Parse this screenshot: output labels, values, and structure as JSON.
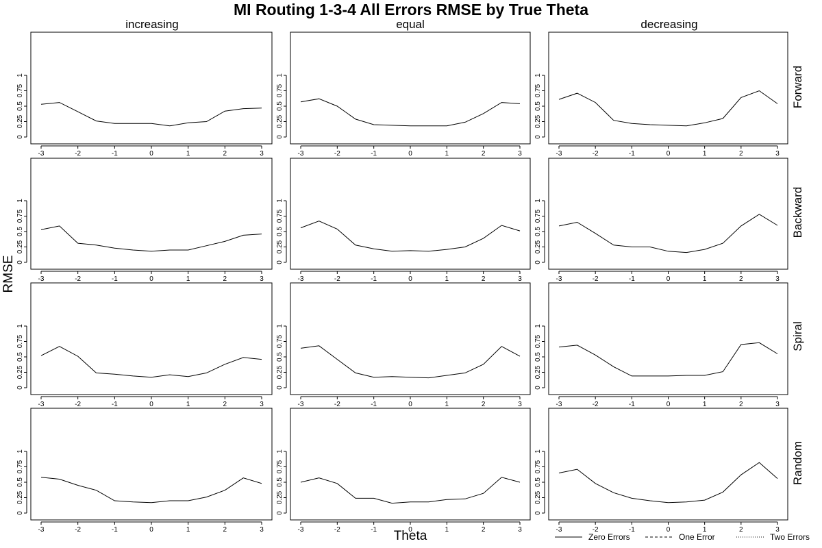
{
  "chart_data": {
    "type": "line",
    "title": "MI Routing 1-3-4 All Errors RMSE by True Theta",
    "xlabel": "Theta",
    "ylabel": "RMSE",
    "columns": [
      "increasing",
      "equal",
      "decreasing"
    ],
    "rows": [
      "Forward",
      "Backward",
      "Spiral",
      "Random"
    ],
    "x": [
      -3,
      -2.5,
      -2,
      -1.5,
      -1,
      -0.5,
      0,
      0.5,
      1,
      1.5,
      2,
      2.5,
      3
    ],
    "x_ticks": [
      "-3",
      "-2",
      "-1",
      "0",
      "1",
      "2",
      "3"
    ],
    "y_ticks": [
      "0",
      "0.25",
      "0.5",
      "0.75",
      "1"
    ],
    "ylim": [
      0,
      1.5
    ],
    "xlim": [
      -3,
      3
    ],
    "legend": {
      "placement": "bottom-right",
      "entries": [
        {
          "name": "Zero Errors",
          "style": "solid"
        },
        {
          "name": "One Error",
          "style": "dashed"
        },
        {
          "name": "Two Errors",
          "style": "dotted"
        }
      ]
    },
    "panels": [
      {
        "row": "Forward",
        "column": "increasing",
        "series": [
          {
            "name": "Zero Errors",
            "values": [
              0.53,
              0.56,
              0.41,
              0.26,
              0.22,
              0.22,
              0.22,
              0.18,
              0.23,
              0.25,
              0.42,
              0.46,
              0.47
            ]
          }
        ]
      },
      {
        "row": "Forward",
        "column": "equal",
        "series": [
          {
            "name": "Zero Errors",
            "values": [
              0.57,
              0.62,
              0.5,
              0.29,
              0.2,
              0.19,
              0.18,
              0.18,
              0.18,
              0.24,
              0.38,
              0.56,
              0.54
            ]
          }
        ]
      },
      {
        "row": "Forward",
        "column": "decreasing",
        "series": [
          {
            "name": "Zero Errors",
            "values": [
              0.61,
              0.71,
              0.56,
              0.27,
              0.22,
              0.2,
              0.19,
              0.18,
              0.23,
              0.3,
              0.64,
              0.75,
              0.54
            ]
          }
        ]
      },
      {
        "row": "Backward",
        "column": "increasing",
        "series": [
          {
            "name": "Zero Errors",
            "values": [
              0.53,
              0.59,
              0.31,
              0.28,
              0.23,
              0.2,
              0.18,
              0.2,
              0.2,
              0.27,
              0.34,
              0.44,
              0.46
            ]
          }
        ]
      },
      {
        "row": "Backward",
        "column": "equal",
        "series": [
          {
            "name": "Zero Errors",
            "values": [
              0.56,
              0.67,
              0.54,
              0.28,
              0.22,
              0.18,
              0.19,
              0.18,
              0.21,
              0.25,
              0.39,
              0.6,
              0.51
            ]
          }
        ]
      },
      {
        "row": "Backward",
        "column": "decreasing",
        "series": [
          {
            "name": "Zero Errors",
            "values": [
              0.59,
              0.65,
              0.47,
              0.28,
              0.25,
              0.25,
              0.18,
              0.16,
              0.21,
              0.31,
              0.59,
              0.78,
              0.6
            ]
          }
        ]
      },
      {
        "row": "Spiral",
        "column": "increasing",
        "series": [
          {
            "name": "Zero Errors",
            "values": [
              0.52,
              0.67,
              0.51,
              0.24,
              0.22,
              0.19,
              0.17,
              0.21,
              0.18,
              0.24,
              0.38,
              0.49,
              0.46
            ]
          }
        ]
      },
      {
        "row": "Spiral",
        "column": "equal",
        "series": [
          {
            "name": "Zero Errors",
            "values": [
              0.64,
              0.68,
              0.46,
              0.24,
              0.17,
              0.18,
              0.17,
              0.16,
              0.2,
              0.24,
              0.38,
              0.67,
              0.51
            ]
          }
        ]
      },
      {
        "row": "Spiral",
        "column": "decreasing",
        "series": [
          {
            "name": "Zero Errors",
            "values": [
              0.66,
              0.69,
              0.53,
              0.34,
              0.19,
              0.19,
              0.19,
              0.2,
              0.2,
              0.26,
              0.7,
              0.73,
              0.55
            ]
          }
        ]
      },
      {
        "row": "Random",
        "column": "increasing",
        "series": [
          {
            "name": "Zero Errors",
            "values": [
              0.58,
              0.55,
              0.45,
              0.37,
              0.2,
              0.18,
              0.17,
              0.2,
              0.2,
              0.26,
              0.37,
              0.57,
              0.48
            ]
          }
        ]
      },
      {
        "row": "Random",
        "column": "equal",
        "series": [
          {
            "name": "Zero Errors",
            "values": [
              0.5,
              0.57,
              0.48,
              0.24,
              0.24,
              0.16,
              0.18,
              0.18,
              0.22,
              0.23,
              0.32,
              0.58,
              0.5
            ]
          }
        ]
      },
      {
        "row": "Random",
        "column": "decreasing",
        "series": [
          {
            "name": "Zero Errors",
            "values": [
              0.65,
              0.71,
              0.48,
              0.33,
              0.24,
              0.2,
              0.17,
              0.18,
              0.21,
              0.34,
              0.62,
              0.82,
              0.56
            ]
          }
        ]
      }
    ]
  }
}
